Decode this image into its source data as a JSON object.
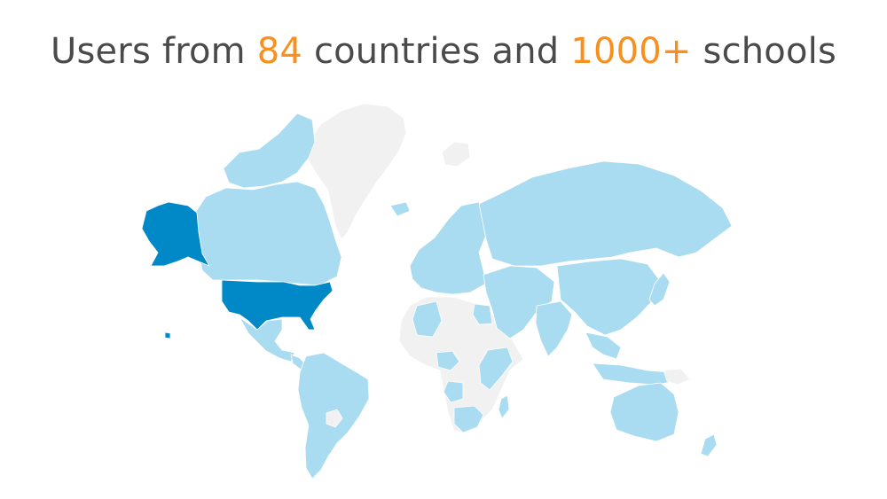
{
  "headline": {
    "prefix": "Users from ",
    "countries_count": "84",
    "middle": " countries and ",
    "schools_count": "1000+",
    "suffix": " schools"
  },
  "colors": {
    "headline_text": "#4a4a4a",
    "highlight": "#f7901e",
    "no_users": "#f1f1f1",
    "has_users": "#a9dbf1",
    "top_users": "#0089c6"
  },
  "map": {
    "type": "choropleth-world",
    "top_regions": [
      "United States",
      "Alaska"
    ],
    "user_regions": [
      "Canada",
      "Mexico",
      "Central America",
      "Colombia",
      "Venezuela",
      "Peru",
      "Brazil",
      "Bolivia",
      "Chile",
      "Argentina",
      "Europe",
      "Russia",
      "Kazakhstan",
      "Mongolia",
      "China",
      "Japan",
      "South Korea",
      "India",
      "Southeast Asia",
      "Indonesia",
      "Philippines",
      "Australia",
      "New Zealand",
      "Turkey",
      "Iran",
      "Saudi Arabia",
      "Egypt",
      "Algeria",
      "Nigeria",
      "Ghana",
      "Ethiopia",
      "Kenya",
      "Tanzania",
      "Angola",
      "South Africa",
      "Madagascar",
      "Iceland",
      "Hawaii"
    ],
    "no_user_regions": [
      "Greenland",
      "Libya",
      "Chad",
      "Niger",
      "Mali",
      "Sudan",
      "DR Congo",
      "Somalia",
      "Zambia",
      "Namibia",
      "Paraguay",
      "Papua New Guinea",
      "Svalbard"
    ]
  }
}
